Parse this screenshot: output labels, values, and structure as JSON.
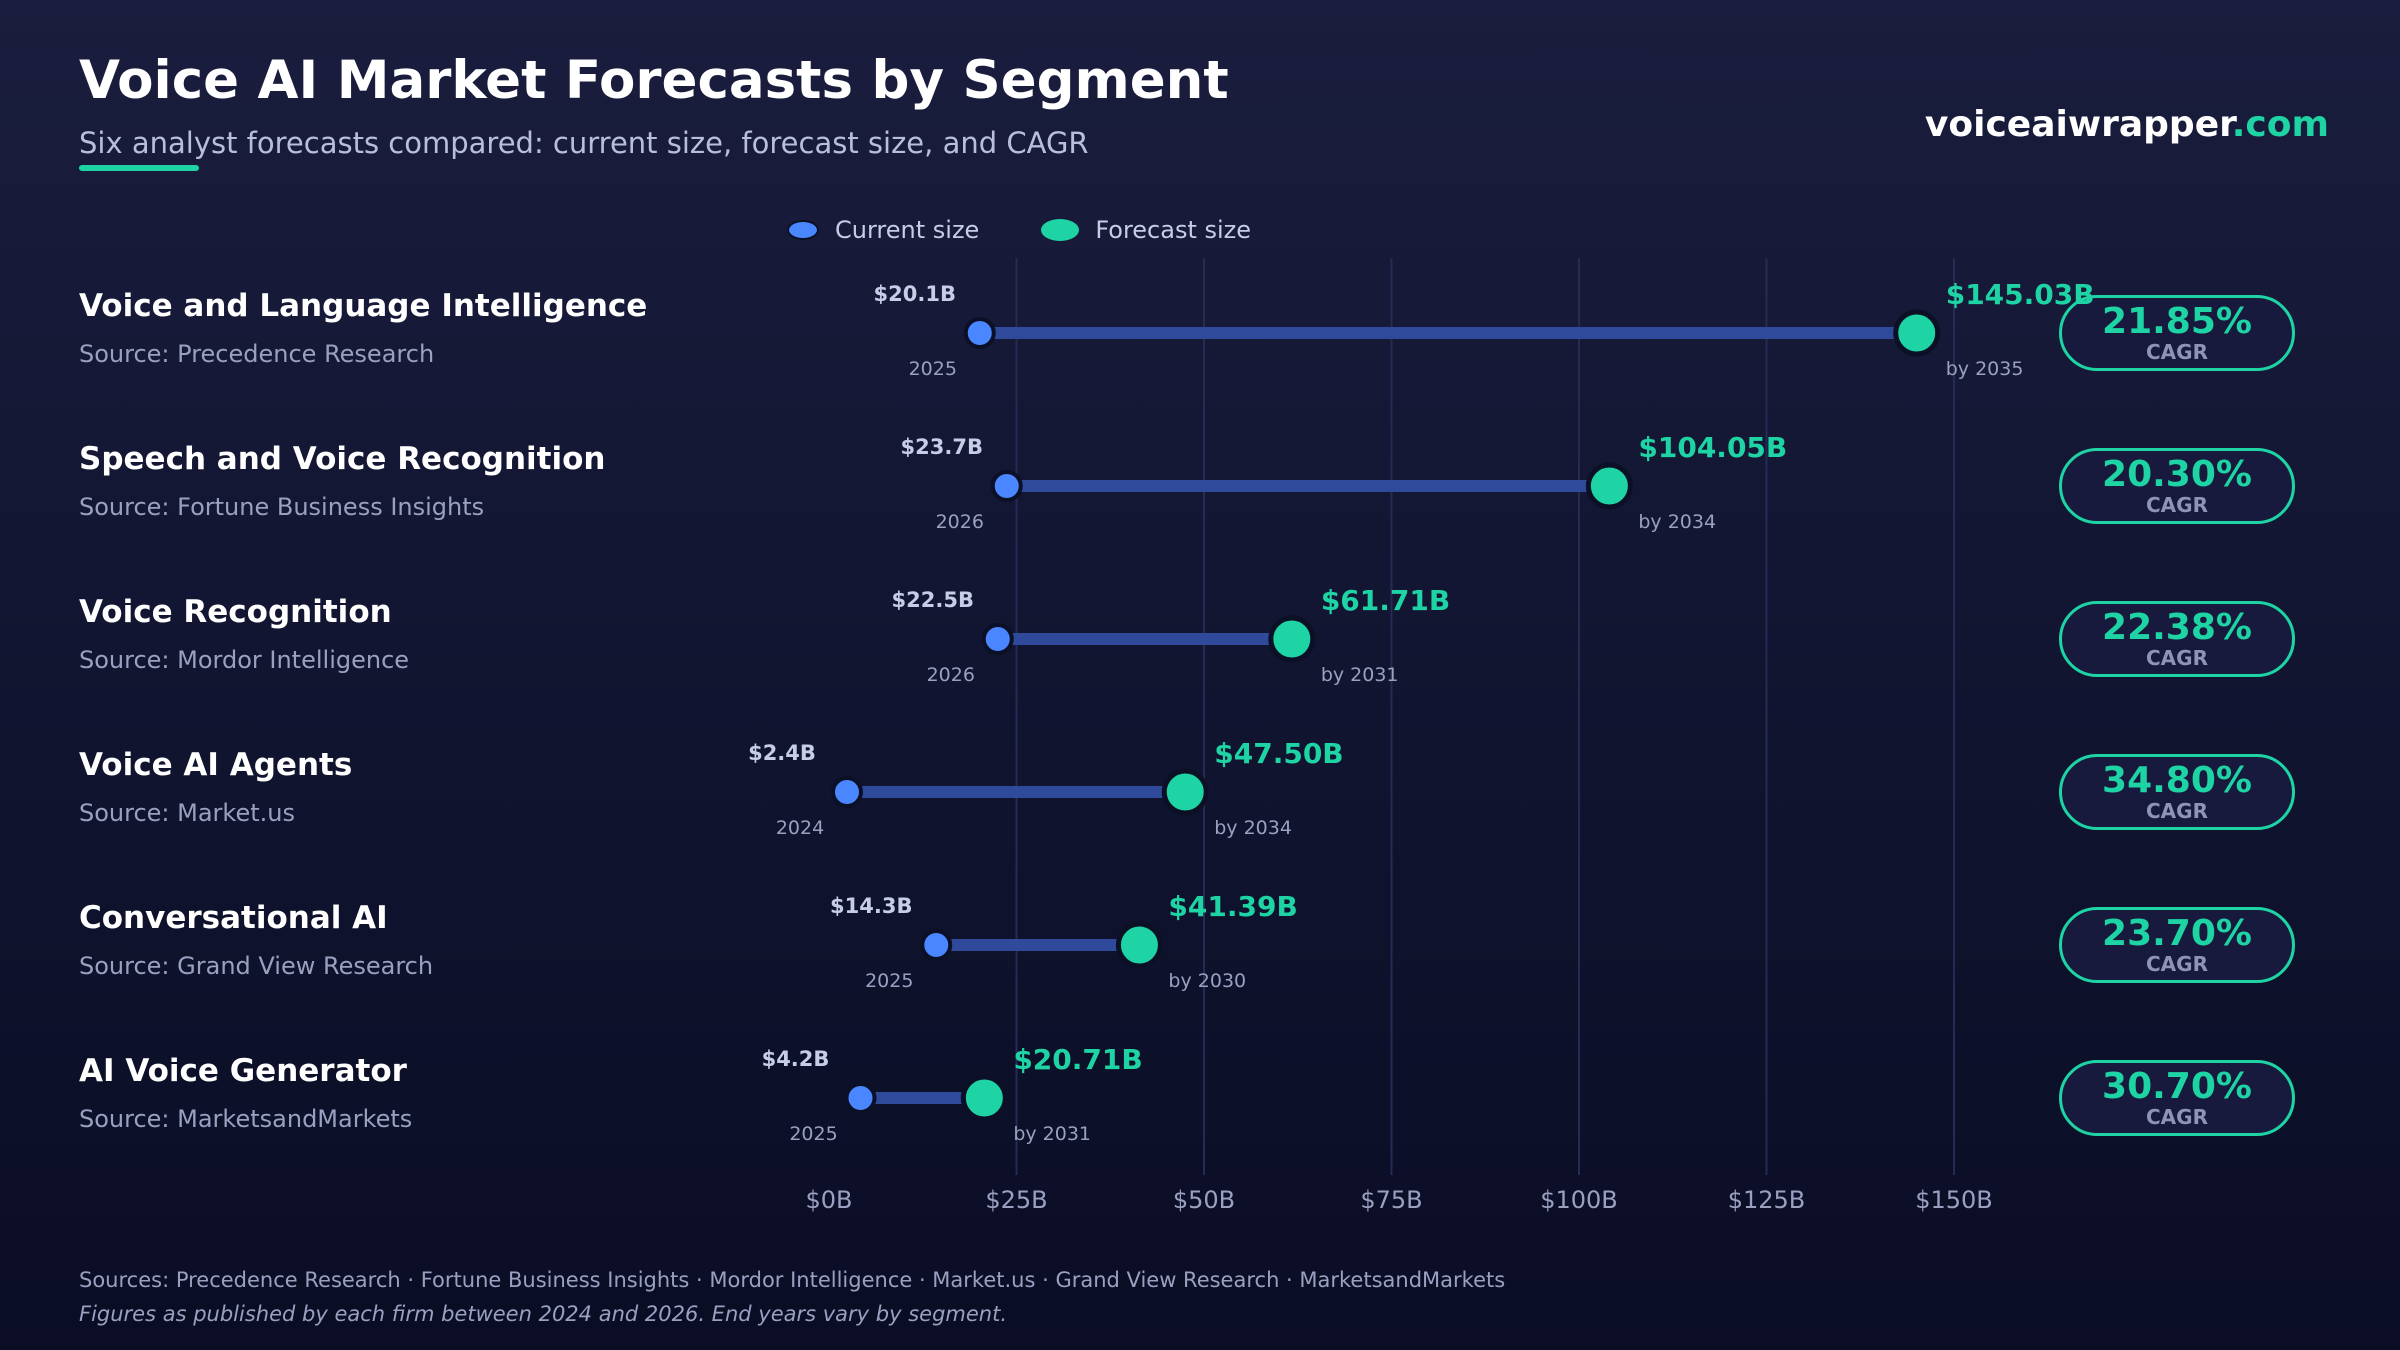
{
  "header": {
    "title": "Voice AI Market Forecasts by Segment",
    "subtitle": "Six analyst forecasts compared: current size, forecast size, and CAGR",
    "brand_name": "voiceaiwrapper",
    "brand_tld": ".com"
  },
  "legend": {
    "current_label": "Current size",
    "forecast_label": "Forecast size"
  },
  "colors": {
    "current": "#4a86ff",
    "forecast": "#1ed3a4",
    "connector": "#2f4a9a",
    "grid": "#252b52",
    "background": "#10142f"
  },
  "chart_data": {
    "type": "dumbbell",
    "x_unit": "USD billions",
    "xlim": [
      0,
      150
    ],
    "x_ticks": [
      0,
      25,
      50,
      75,
      100,
      125,
      150
    ],
    "x_tick_labels": [
      "$0B",
      "$25B",
      "$50B",
      "$75B",
      "$100B",
      "$125B",
      "$150B"
    ],
    "grid": "vertical",
    "legend_position": "top",
    "rows": [
      {
        "segment": "Voice and Language Intelligence",
        "source": "Source: Precedence Research",
        "current": 20.1,
        "current_label": "$20.1B",
        "current_year": "2025",
        "forecast": 145.03,
        "forecast_label": "$145.03B",
        "forecast_year": "by 2035",
        "cagr": "21.85%"
      },
      {
        "segment": "Speech and Voice Recognition",
        "source": "Source: Fortune Business Insights",
        "current": 23.7,
        "current_label": "$23.7B",
        "current_year": "2026",
        "forecast": 104.05,
        "forecast_label": "$104.05B",
        "forecast_year": "by 2034",
        "cagr": "20.30%"
      },
      {
        "segment": "Voice Recognition",
        "source": "Source: Mordor Intelligence",
        "current": 22.5,
        "current_label": "$22.5B",
        "current_year": "2026",
        "forecast": 61.71,
        "forecast_label": "$61.71B",
        "forecast_year": "by 2031",
        "cagr": "22.38%"
      },
      {
        "segment": "Voice AI Agents",
        "source": "Source: Market.us",
        "current": 2.4,
        "current_label": "$2.4B",
        "current_year": "2024",
        "forecast": 47.5,
        "forecast_label": "$47.50B",
        "forecast_year": "by 2034",
        "cagr": "34.80%"
      },
      {
        "segment": "Conversational AI",
        "source": "Source: Grand View Research",
        "current": 14.3,
        "current_label": "$14.3B",
        "current_year": "2025",
        "forecast": 41.39,
        "forecast_label": "$41.39B",
        "forecast_year": "by 2030",
        "cagr": "23.70%"
      },
      {
        "segment": "AI Voice Generator",
        "source": "Source: MarketsandMarkets",
        "current": 4.2,
        "current_label": "$4.2B",
        "current_year": "2025",
        "forecast": 20.71,
        "forecast_label": "$20.71B",
        "forecast_year": "by 2031",
        "cagr": "30.70%"
      }
    ]
  },
  "cagr_caption": "CAGR",
  "footer": {
    "sources": "Sources: Precedence Research · Fortune Business Insights · Mordor Intelligence · Market.us · Grand View Research · MarketsandMarkets",
    "note": "Figures as published by each firm between 2024 and 2026. End years vary by segment."
  }
}
